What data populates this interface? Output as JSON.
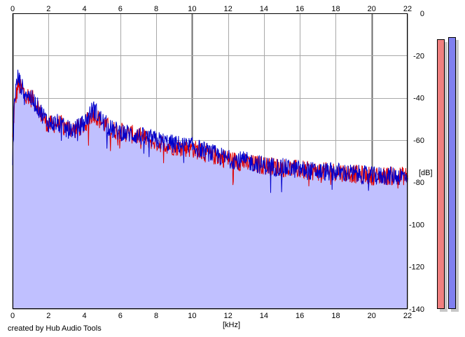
{
  "chart_data": {
    "type": "area",
    "xlabel": "[kHz]",
    "ylabel": "[dB]",
    "xlim": [
      0,
      22
    ],
    "ylim": [
      -140,
      0
    ],
    "xticks": [
      "0",
      "2",
      "4",
      "6",
      "8",
      "10",
      "12",
      "14",
      "16",
      "18",
      "20",
      "22"
    ],
    "yticks": [
      "0",
      "-20",
      "-40",
      "-60",
      "-80",
      "-100",
      "-120",
      "-140"
    ],
    "grid": true,
    "series": [
      {
        "color": "#e00000",
        "x": [
          0,
          0.1,
          0.3,
          0.5,
          0.7,
          1,
          1.3,
          1.6,
          2,
          2.5,
          3,
          3.5,
          4,
          4.5,
          5,
          5.5,
          6,
          7,
          8,
          9,
          10,
          11,
          12,
          13,
          14,
          15,
          16,
          17,
          18,
          19,
          20,
          21,
          22
        ],
        "values": [
          -60,
          -45,
          -34,
          -36,
          -38,
          -40,
          -42,
          -48,
          -53,
          -52,
          -54,
          -55,
          -53,
          -47,
          -52,
          -55,
          -56,
          -58,
          -61,
          -63,
          -64,
          -67,
          -69,
          -71,
          -72,
          -73,
          -74,
          -75,
          -75,
          -76,
          -77,
          -77,
          -77
        ]
      },
      {
        "color": "#0000cc",
        "x": [
          0,
          0.1,
          0.3,
          0.5,
          0.7,
          1,
          1.3,
          1.6,
          2,
          2.5,
          3,
          3.5,
          4,
          4.5,
          5,
          5.5,
          6,
          7,
          8,
          9,
          10,
          11,
          12,
          13,
          14,
          15,
          16,
          17,
          18,
          19,
          20,
          21,
          22
        ],
        "values": [
          -72,
          -40,
          -30,
          -35,
          -37,
          -40,
          -43,
          -47,
          -52,
          -52,
          -55,
          -55,
          -52,
          -45,
          -51,
          -55,
          -56,
          -58,
          -60,
          -62,
          -63,
          -66,
          -69,
          -70,
          -72,
          -73,
          -74,
          -75,
          -75,
          -76,
          -77,
          -77,
          -77
        ]
      }
    ],
    "area_fill": "#c0c0ff",
    "meters": [
      {
        "color": "#f08080",
        "level": 0.971
      },
      {
        "color": "#8080f0",
        "level": 0.981
      }
    ]
  },
  "credit": "created by Hub Audio Tools"
}
